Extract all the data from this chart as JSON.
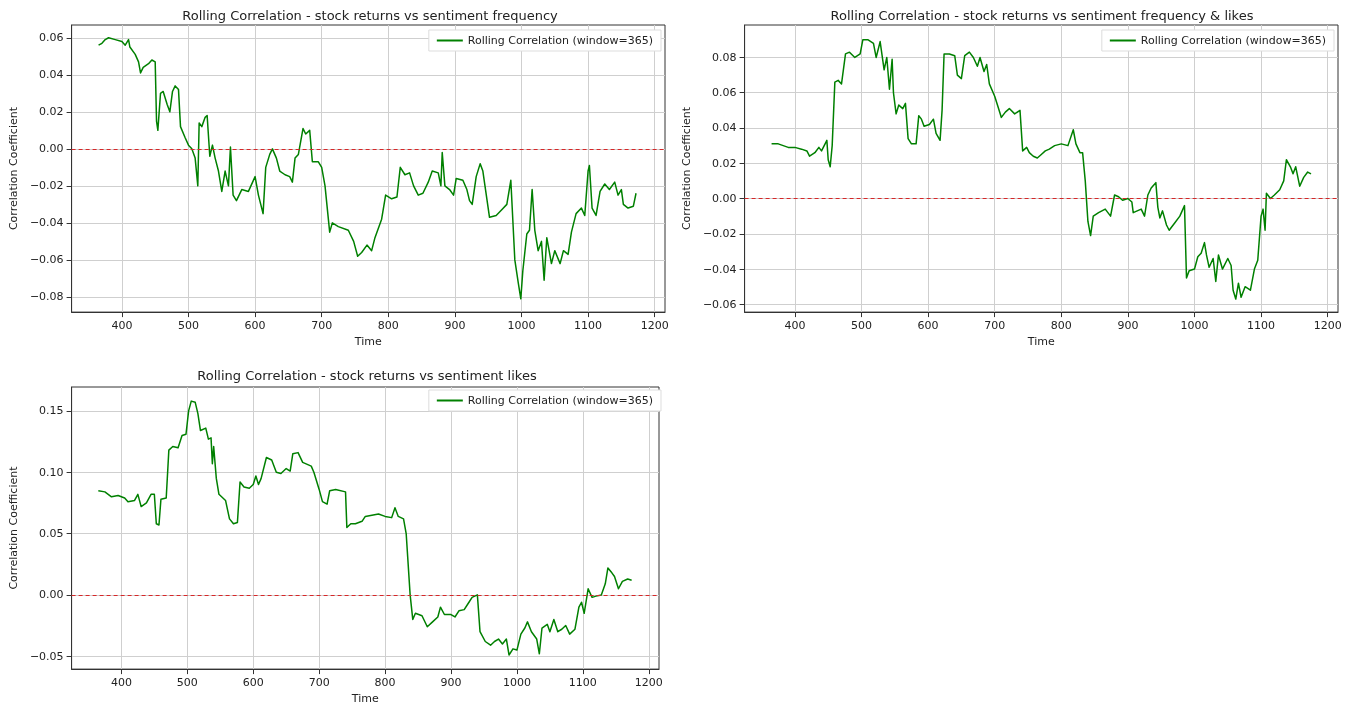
{
  "chart_data": [
    {
      "type": "line",
      "title": "Rolling Correlation - stock returns vs sentiment frequency",
      "xlabel": "Time",
      "ylabel": "Correlation Coefficient",
      "legend": "top right",
      "grid": true,
      "xlim": [
        324.5,
        1215.5
      ],
      "xticks": [
        400,
        500,
        600,
        700,
        800,
        900,
        1000,
        1100,
        1200
      ],
      "ylim": [
        -0.0882,
        0.0669
      ],
      "yticks": [
        {
          "value": -0.08,
          "label": "−0.08"
        },
        {
          "value": -0.06,
          "label": "−0.06"
        },
        {
          "value": -0.04,
          "label": "−0.04"
        },
        {
          "value": -0.02,
          "label": "−0.02"
        },
        {
          "value": 0,
          "label": "0.00"
        },
        {
          "value": 0.02,
          "label": "0.02"
        },
        {
          "value": 0.04,
          "label": "0.04"
        },
        {
          "value": 0.06,
          "label": "0.06"
        }
      ],
      "ref_lines": [
        {
          "axis": "y",
          "value": 0,
          "color": "#d62728",
          "line_style": "dashed"
        }
      ],
      "series": [
        {
          "name": "Rolling Correlation (window=365)",
          "color": "#008000",
          "x": [
            365,
            370,
            375,
            380,
            390,
            400,
            405,
            410,
            412,
            420,
            425,
            428,
            432,
            440,
            445,
            450,
            452,
            454,
            458,
            462,
            468,
            472,
            476,
            480,
            485,
            488,
            495,
            500,
            505,
            510,
            514,
            516,
            520,
            525,
            528,
            532,
            536,
            540,
            545,
            550,
            555,
            560,
            563,
            567,
            572,
            580,
            590,
            600,
            605,
            612,
            616,
            622,
            626,
            632,
            637,
            645,
            652,
            656,
            660,
            665,
            672,
            676,
            682,
            686,
            695,
            700,
            705,
            712,
            716,
            725,
            740,
            748,
            754,
            760,
            768,
            775,
            780,
            790,
            796,
            805,
            813,
            818,
            825,
            832,
            838,
            845,
            852,
            860,
            866,
            875,
            879,
            881,
            885,
            892,
            898,
            902,
            912,
            918,
            922,
            926,
            932,
            938,
            942,
            946,
            952,
            962,
            970,
            978,
            984,
            990,
            995,
            999,
            1002,
            1008,
            1012,
            1016,
            1020,
            1025,
            1030,
            1034,
            1038,
            1045,
            1050,
            1058,
            1063,
            1070,
            1075,
            1082,
            1090,
            1095,
            1100,
            1102,
            1106,
            1112,
            1118,
            1125,
            1132,
            1140,
            1145,
            1150,
            1153,
            1160,
            1168,
            1172
          ],
          "values": [
            0.056,
            0.057,
            0.059,
            0.06,
            0.059,
            0.058,
            0.056,
            0.059,
            0.055,
            0.051,
            0.047,
            0.041,
            0.044,
            0.046,
            0.048,
            0.047,
            0.015,
            0.01,
            0.03,
            0.031,
            0.024,
            0.02,
            0.031,
            0.034,
            0.032,
            0.012,
            0.006,
            0.002,
            0.0,
            -0.005,
            -0.02,
            0.014,
            0.012,
            0.017,
            0.018,
            -0.004,
            0.002,
            -0.005,
            -0.012,
            -0.023,
            -0.012,
            -0.02,
            0.001,
            -0.025,
            -0.028,
            -0.022,
            -0.023,
            -0.015,
            -0.025,
            -0.035,
            -0.01,
            -0.003,
            0.0,
            -0.005,
            -0.012,
            -0.014,
            -0.015,
            -0.018,
            -0.005,
            -0.003,
            0.011,
            0.008,
            0.01,
            -0.007,
            -0.007,
            -0.01,
            -0.02,
            -0.045,
            -0.04,
            -0.042,
            -0.044,
            -0.05,
            -0.058,
            -0.056,
            -0.052,
            -0.055,
            -0.048,
            -0.038,
            -0.025,
            -0.027,
            -0.026,
            -0.01,
            -0.014,
            -0.013,
            -0.02,
            -0.025,
            -0.024,
            -0.018,
            -0.012,
            -0.013,
            -0.02,
            -0.002,
            -0.02,
            -0.022,
            -0.025,
            -0.016,
            -0.017,
            -0.022,
            -0.028,
            -0.03,
            -0.015,
            -0.008,
            -0.012,
            -0.022,
            -0.037,
            -0.036,
            -0.033,
            -0.03,
            -0.017,
            -0.06,
            -0.072,
            -0.081,
            -0.066,
            -0.046,
            -0.044,
            -0.022,
            -0.044,
            -0.055,
            -0.05,
            -0.071,
            -0.048,
            -0.062,
            -0.055,
            -0.062,
            -0.055,
            -0.057,
            -0.045,
            -0.035,
            -0.032,
            -0.036,
            -0.012,
            -0.009,
            -0.032,
            -0.036,
            -0.023,
            -0.019,
            -0.022,
            -0.018,
            -0.025,
            -0.022,
            -0.03,
            -0.032,
            -0.031,
            -0.024
          ]
        }
      ]
    },
    {
      "type": "line",
      "title": "Rolling Correlation - stock returns vs sentiment frequency & likes",
      "xlabel": "Time",
      "ylabel": "Correlation Coefficient",
      "legend": "top right",
      "grid": true,
      "xlim": [
        324.5,
        1215.5
      ],
      "xticks": [
        400,
        500,
        600,
        700,
        800,
        900,
        1000,
        1100,
        1200
      ],
      "ylim": [
        -0.0644,
        0.0984
      ],
      "yticks": [
        {
          "value": -0.06,
          "label": "−0.06"
        },
        {
          "value": -0.04,
          "label": "−0.04"
        },
        {
          "value": -0.02,
          "label": "−0.02"
        },
        {
          "value": 0,
          "label": "0.00"
        },
        {
          "value": 0.02,
          "label": "0.02"
        },
        {
          "value": 0.04,
          "label": "0.04"
        },
        {
          "value": 0.06,
          "label": "0.06"
        },
        {
          "value": 0.08,
          "label": "0.08"
        }
      ],
      "ref_lines": [
        {
          "axis": "y",
          "value": 0,
          "color": "#d62728",
          "line_style": "dashed"
        }
      ],
      "series": [
        {
          "name": "Rolling Correlation (window=365)",
          "color": "#008000",
          "x": [
            365,
            375,
            390,
            400,
            410,
            418,
            422,
            430,
            436,
            440,
            448,
            450,
            453,
            456,
            460,
            465,
            470,
            476,
            482,
            490,
            498,
            502,
            510,
            518,
            522,
            528,
            534,
            538,
            542,
            546,
            548,
            552,
            556,
            562,
            566,
            570,
            575,
            582,
            586,
            590,
            594,
            602,
            608,
            612,
            618,
            621,
            624,
            632,
            640,
            644,
            650,
            655,
            662,
            668,
            674,
            678,
            684,
            688,
            692,
            700,
            705,
            710,
            716,
            722,
            730,
            738,
            742,
            748,
            752,
            758,
            764,
            770,
            776,
            782,
            790,
            800,
            810,
            818,
            822,
            828,
            832,
            836,
            840,
            844,
            848,
            856,
            866,
            874,
            880,
            886,
            892,
            900,
            906,
            908,
            914,
            920,
            925,
            930,
            935,
            942,
            945,
            948,
            952,
            958,
            962,
            970,
            978,
            985,
            988,
            992,
            1000,
            1005,
            1010,
            1015,
            1018,
            1022,
            1028,
            1032,
            1036,
            1042,
            1050,
            1055,
            1058,
            1062,
            1066,
            1070,
            1076,
            1084,
            1090,
            1095,
            1100,
            1103,
            1106,
            1108,
            1114,
            1120,
            1128,
            1134,
            1138,
            1144,
            1148,
            1152,
            1158,
            1164,
            1170,
            1175
          ],
          "values": [
            0.031,
            0.031,
            0.029,
            0.029,
            0.028,
            0.027,
            0.024,
            0.026,
            0.029,
            0.027,
            0.033,
            0.022,
            0.018,
            0.03,
            0.066,
            0.067,
            0.065,
            0.082,
            0.083,
            0.08,
            0.082,
            0.09,
            0.09,
            0.088,
            0.08,
            0.089,
            0.073,
            0.08,
            0.062,
            0.079,
            0.06,
            0.048,
            0.053,
            0.051,
            0.054,
            0.034,
            0.031,
            0.031,
            0.047,
            0.045,
            0.041,
            0.042,
            0.045,
            0.037,
            0.033,
            0.05,
            0.082,
            0.082,
            0.081,
            0.07,
            0.068,
            0.081,
            0.083,
            0.08,
            0.075,
            0.08,
            0.072,
            0.076,
            0.065,
            0.058,
            0.052,
            0.046,
            0.049,
            0.051,
            0.048,
            0.05,
            0.027,
            0.029,
            0.026,
            0.024,
            0.023,
            0.025,
            0.027,
            0.028,
            0.03,
            0.031,
            0.03,
            0.039,
            0.031,
            0.026,
            0.026,
            0.01,
            -0.013,
            -0.021,
            -0.01,
            -0.008,
            -0.006,
            -0.01,
            0.002,
            0.001,
            -0.001,
            0.0,
            -0.002,
            -0.008,
            -0.007,
            -0.006,
            -0.01,
            0.002,
            0.006,
            0.009,
            -0.005,
            -0.011,
            -0.007,
            -0.015,
            -0.018,
            -0.014,
            -0.01,
            -0.004,
            -0.045,
            -0.041,
            -0.04,
            -0.033,
            -0.031,
            -0.025,
            -0.032,
            -0.039,
            -0.034,
            -0.047,
            -0.032,
            -0.04,
            -0.034,
            -0.038,
            -0.052,
            -0.057,
            -0.048,
            -0.056,
            -0.05,
            -0.052,
            -0.04,
            -0.035,
            -0.01,
            -0.006,
            -0.018,
            0.003,
            0.0,
            0.002,
            0.005,
            0.01,
            0.022,
            0.018,
            0.014,
            0.018,
            0.007,
            0.012,
            0.015,
            0.014
          ]
        }
      ]
    },
    {
      "type": "line",
      "title": "Rolling Correlation - stock returns vs sentiment likes",
      "xlabel": "Time",
      "ylabel": "Correlation Coefficient",
      "legend": "top right",
      "grid": true,
      "xlim": [
        324.5,
        1215.5
      ],
      "xticks": [
        400,
        500,
        600,
        700,
        800,
        900,
        1000,
        1100,
        1200
      ],
      "ylim": [
        -0.0605,
        0.1695
      ],
      "yticks": [
        {
          "value": -0.05,
          "label": "−0.05"
        },
        {
          "value": 0,
          "label": "0.00"
        },
        {
          "value": 0.05,
          "label": "0.05"
        },
        {
          "value": 0.1,
          "label": "0.10"
        },
        {
          "value": 0.15,
          "label": "0.15"
        }
      ],
      "ref_lines": [
        {
          "axis": "y",
          "value": 0,
          "color": "#d62728",
          "line_style": "dashed"
        }
      ],
      "series": [
        {
          "name": "Rolling Correlation (window=365)",
          "color": "#008000",
          "x": [
            365,
            375,
            385,
            395,
            405,
            410,
            420,
            425,
            430,
            438,
            445,
            450,
            453,
            457,
            460,
            468,
            472,
            478,
            486,
            492,
            498,
            502,
            506,
            512,
            516,
            520,
            528,
            532,
            536,
            538,
            540,
            544,
            548,
            552,
            558,
            564,
            570,
            576,
            580,
            586,
            594,
            600,
            604,
            608,
            612,
            620,
            628,
            635,
            642,
            650,
            656,
            660,
            668,
            675,
            688,
            692,
            700,
            705,
            712,
            716,
            725,
            740,
            742,
            748,
            755,
            765,
            770,
            780,
            790,
            800,
            810,
            815,
            820,
            828,
            832,
            838,
            842,
            846,
            856,
            864,
            872,
            880,
            884,
            890,
            900,
            906,
            912,
            920,
            926,
            932,
            940,
            944,
            952,
            960,
            966,
            972,
            978,
            984,
            988,
            994,
            1000,
            1006,
            1012,
            1016,
            1022,
            1030,
            1034,
            1038,
            1046,
            1050,
            1056,
            1062,
            1068,
            1074,
            1080,
            1088,
            1094,
            1098,
            1102,
            1108,
            1114,
            1120,
            1128,
            1134,
            1138,
            1144,
            1148,
            1154,
            1160,
            1168,
            1174
          ],
          "values": [
            0.085,
            0.084,
            0.08,
            0.081,
            0.079,
            0.076,
            0.077,
            0.082,
            0.072,
            0.075,
            0.082,
            0.082,
            0.058,
            0.057,
            0.078,
            0.079,
            0.118,
            0.121,
            0.12,
            0.13,
            0.131,
            0.15,
            0.158,
            0.157,
            0.148,
            0.134,
            0.136,
            0.127,
            0.128,
            0.107,
            0.121,
            0.095,
            0.082,
            0.08,
            0.077,
            0.062,
            0.058,
            0.059,
            0.092,
            0.088,
            0.087,
            0.09,
            0.097,
            0.09,
            0.095,
            0.112,
            0.11,
            0.1,
            0.099,
            0.103,
            0.101,
            0.115,
            0.116,
            0.108,
            0.105,
            0.1,
            0.086,
            0.076,
            0.074,
            0.085,
            0.086,
            0.084,
            0.055,
            0.058,
            0.058,
            0.06,
            0.064,
            0.065,
            0.066,
            0.064,
            0.063,
            0.071,
            0.064,
            0.062,
            0.05,
            0.0,
            -0.02,
            -0.015,
            -0.017,
            -0.026,
            -0.022,
            -0.018,
            -0.01,
            -0.016,
            -0.016,
            -0.018,
            -0.013,
            -0.012,
            -0.007,
            -0.002,
            0.0,
            -0.03,
            -0.038,
            -0.041,
            -0.038,
            -0.036,
            -0.04,
            -0.036,
            -0.049,
            -0.044,
            -0.045,
            -0.032,
            -0.027,
            -0.022,
            -0.03,
            -0.036,
            -0.048,
            -0.027,
            -0.024,
            -0.03,
            -0.02,
            -0.03,
            -0.028,
            -0.025,
            -0.032,
            -0.028,
            -0.01,
            -0.006,
            -0.015,
            0.005,
            -0.002,
            -0.001,
            0.0,
            0.009,
            0.022,
            0.018,
            0.015,
            0.005,
            0.011,
            0.013,
            0.012
          ]
        }
      ]
    }
  ]
}
